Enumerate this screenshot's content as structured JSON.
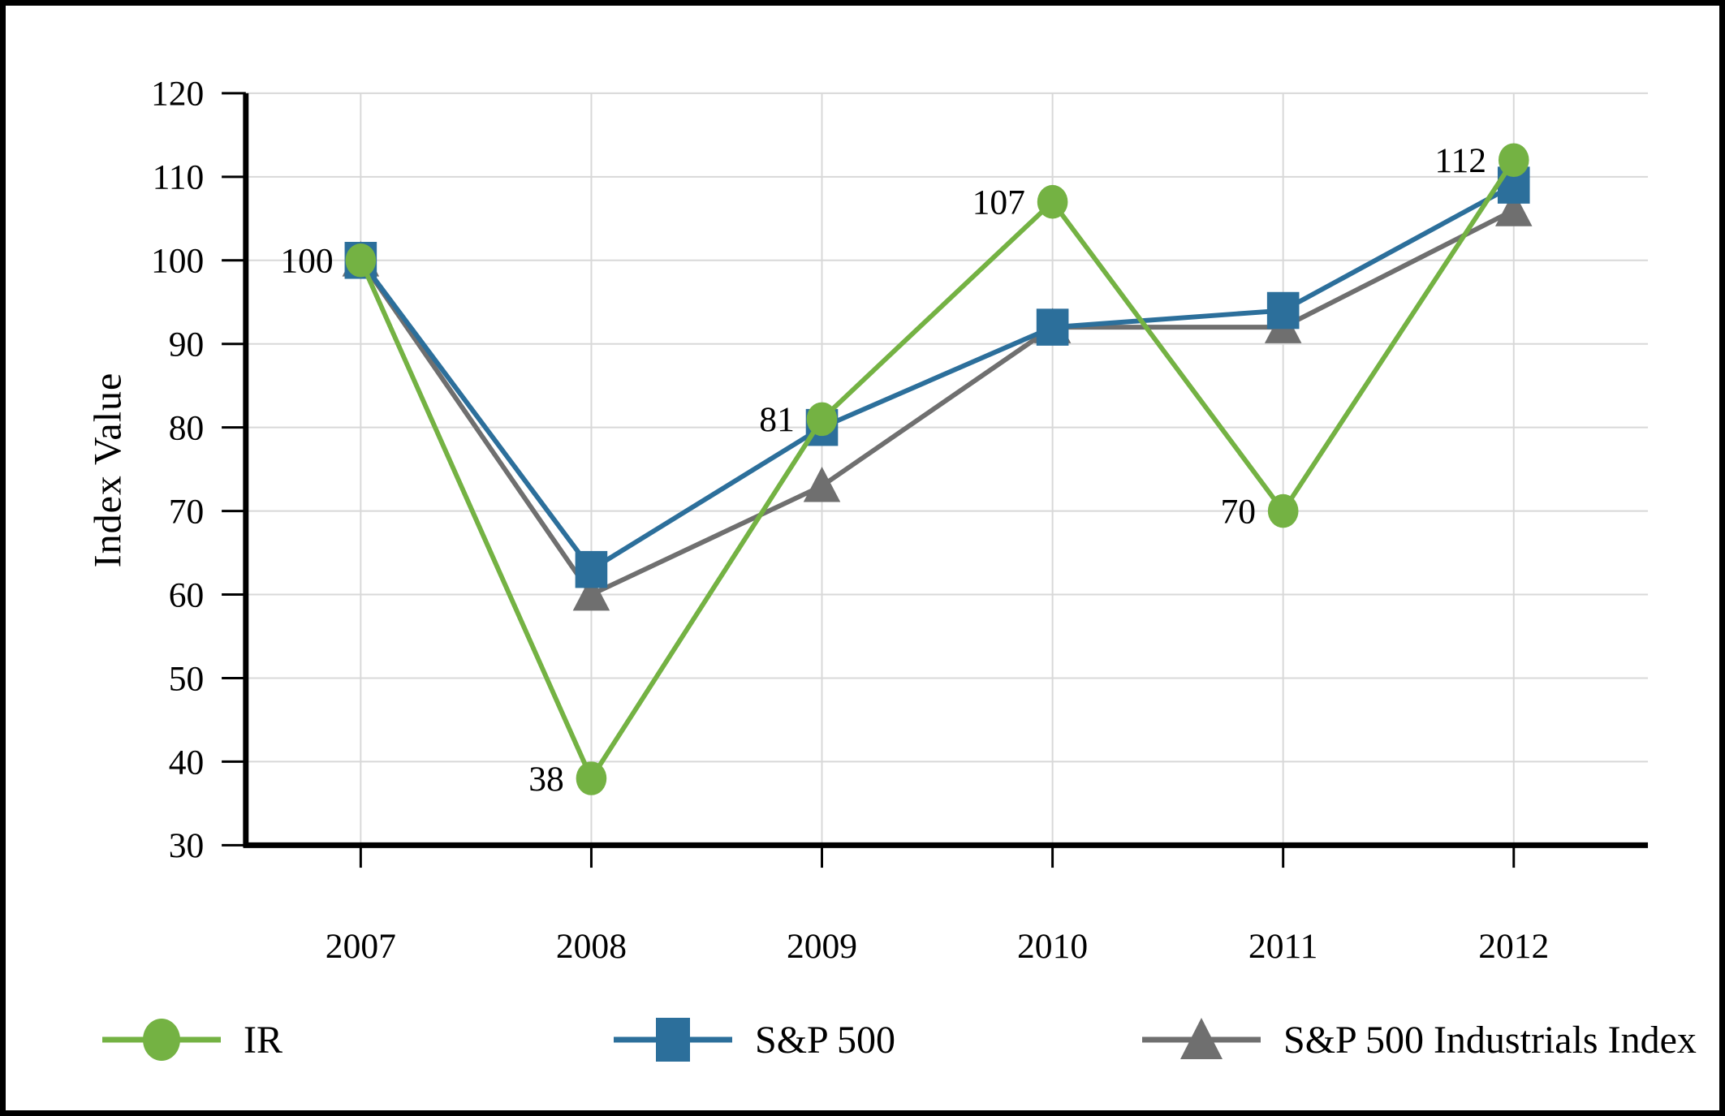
{
  "chart_data": {
    "type": "line",
    "title": "",
    "xlabel": "",
    "ylabel": "Index Value",
    "categories": [
      "2007",
      "2008",
      "2009",
      "2010",
      "2011",
      "2012"
    ],
    "ylim": [
      30,
      120
    ],
    "ytick_step": 10,
    "y_tick_labels": [
      "30",
      "40",
      "50",
      "60",
      "70",
      "80",
      "90",
      "100",
      "110",
      "120"
    ],
    "grid": true,
    "grid_color": "#D8D8D8",
    "axis_color": "#000000",
    "text_color": "#000000",
    "legend_position": "bottom",
    "series": [
      {
        "name": "IR",
        "marker": "circle",
        "color": "#74B243",
        "values": [
          100,
          38,
          81,
          107,
          70,
          112
        ],
        "point_labels": [
          "100",
          "38",
          "81",
          "107",
          "70",
          "112"
        ]
      },
      {
        "name": "S&P 500",
        "marker": "square",
        "color": "#2C6F9B",
        "values": [
          100,
          63,
          80,
          92,
          94,
          109
        ]
      },
      {
        "name": "S&P 500 Industrials Index",
        "marker": "triangle",
        "color": "#6F6F6F",
        "values": [
          100,
          60,
          73,
          92,
          92,
          106
        ]
      }
    ]
  }
}
